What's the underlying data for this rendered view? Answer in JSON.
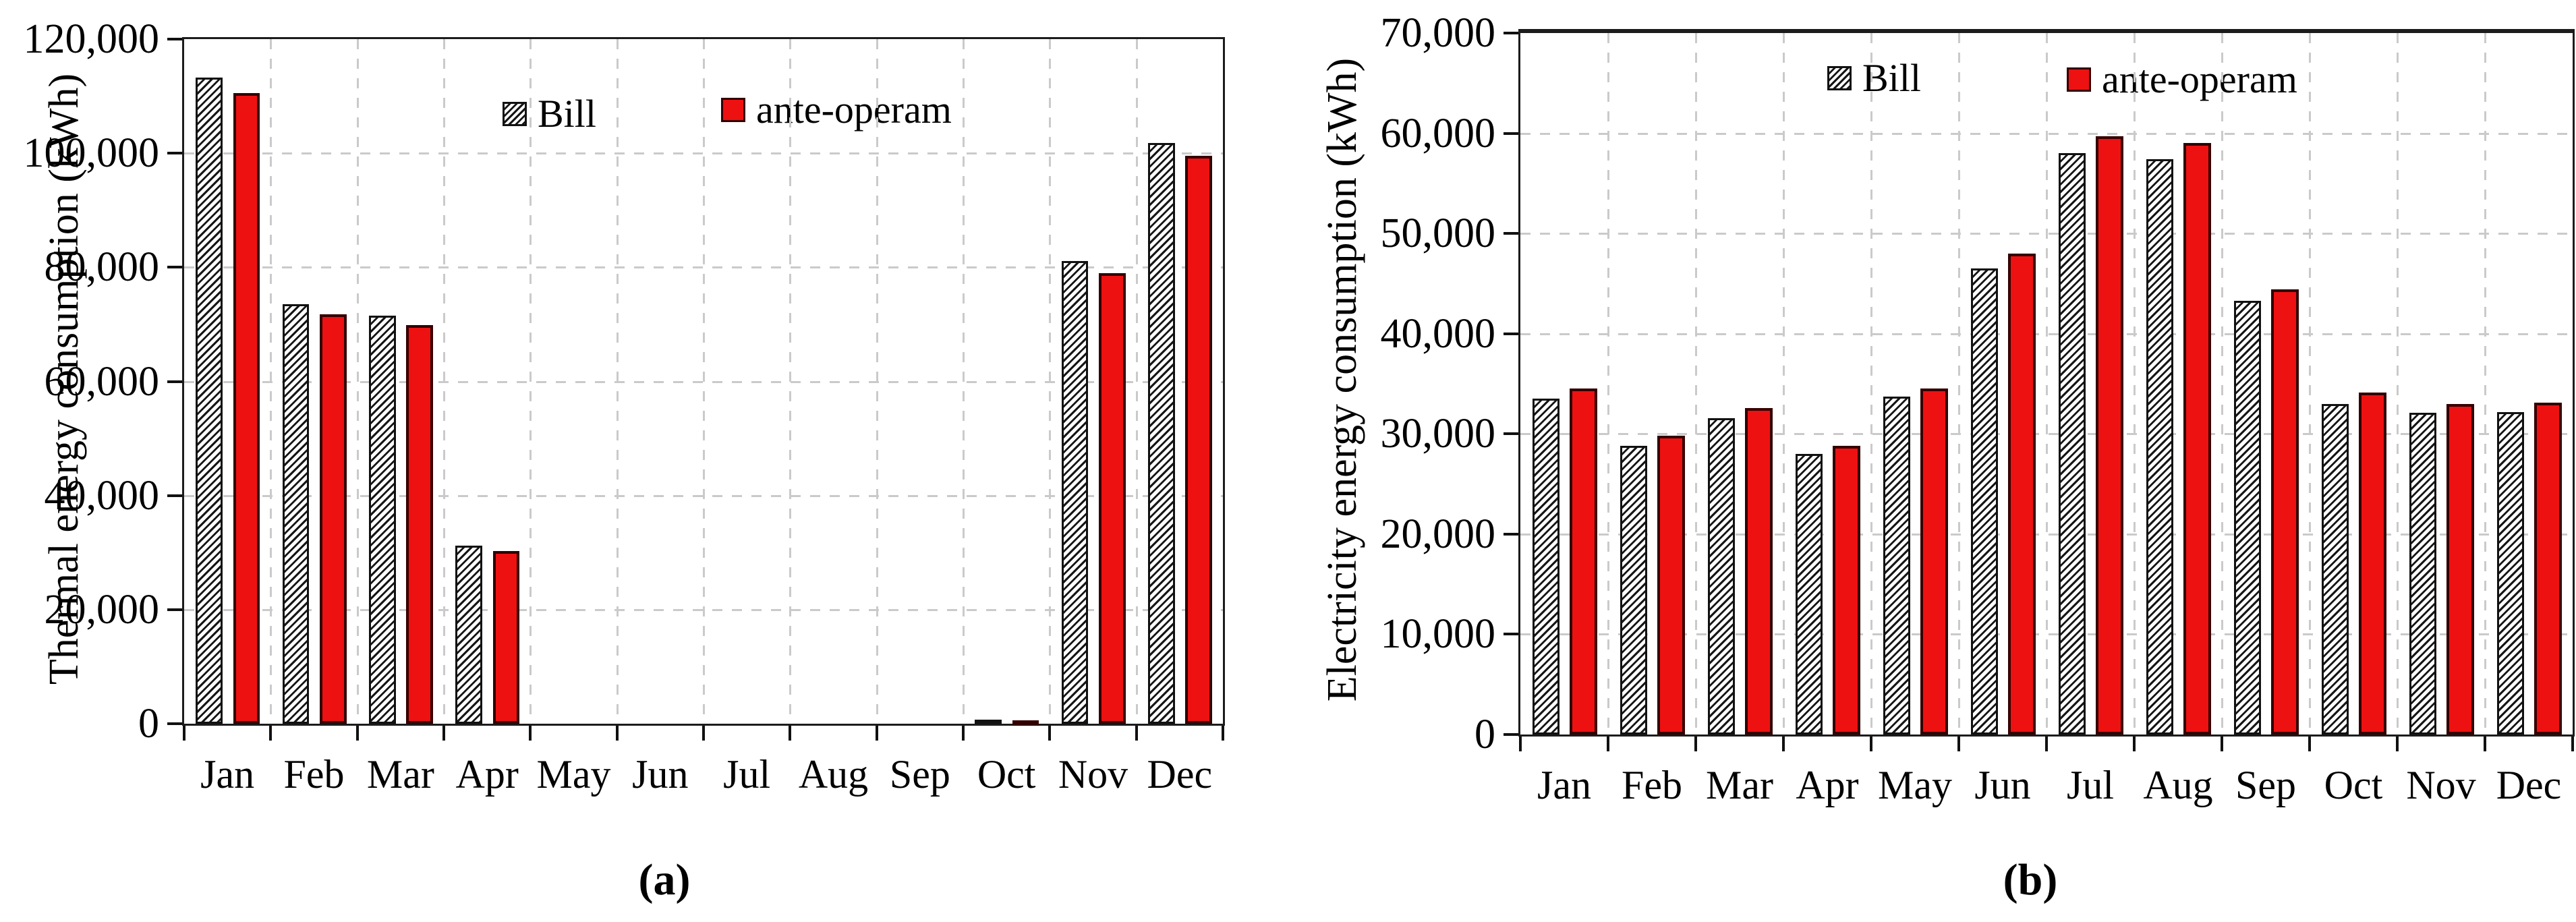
{
  "figure": {
    "background_color": "#ffffff",
    "gridline_color": "#cacaca",
    "bill_hatch_color": "#161616",
    "ante_operam_fill_color": "#ee1111",
    "bar_edge_color": "#111111"
  },
  "chart_data": [
    {
      "type": "bar",
      "panel": "a",
      "caption": "(a)",
      "title": "",
      "xlabel": "",
      "ylabel": "Thermal energy consumption (kWh)",
      "categories": [
        "Jan",
        "Feb",
        "Mar",
        "Apr",
        "May",
        "Jun",
        "Jul",
        "Aug",
        "Sep",
        "Oct",
        "Nov",
        "Dec"
      ],
      "series": [
        {
          "name": "Bill",
          "values": [
            113300,
            73500,
            71500,
            31200,
            0,
            0,
            0,
            0,
            0,
            700,
            81100,
            101800
          ]
        },
        {
          "name": "ante-operam",
          "values": [
            110600,
            71800,
            69900,
            30300,
            0,
            0,
            0,
            0,
            0,
            650,
            79000,
            99500
          ]
        }
      ],
      "ylim": [
        0,
        120000
      ],
      "ytick_step": 20000,
      "ytick_labels": [
        "0",
        "20,000",
        "40,000",
        "60,000",
        "80,000",
        "100,000",
        "120,000"
      ],
      "grid": true,
      "legend_position": "top-inside"
    },
    {
      "type": "bar",
      "panel": "b",
      "caption": "(b)",
      "title": "",
      "xlabel": "",
      "ylabel": "Electricity energy consumption (kWh)",
      "categories": [
        "Jan",
        "Feb",
        "Mar",
        "Apr",
        "May",
        "Jun",
        "Jul",
        "Aug",
        "Sep",
        "Oct",
        "Nov",
        "Dec"
      ],
      "series": [
        {
          "name": "Bill",
          "values": [
            33500,
            28800,
            31600,
            28000,
            33700,
            46500,
            58000,
            57400,
            43300,
            33000,
            32100,
            32200
          ]
        },
        {
          "name": "ante-operam",
          "values": [
            34500,
            29800,
            32600,
            28800,
            34500,
            48000,
            59700,
            59000,
            44400,
            34100,
            33000,
            33100
          ]
        }
      ],
      "ylim": [
        0,
        70000
      ],
      "ytick_step": 10000,
      "ytick_labels": [
        "0",
        "10,000",
        "20,000",
        "30,000",
        "40,000",
        "50,000",
        "60,000",
        "70,000"
      ],
      "grid": true,
      "legend_position": "top-inside"
    }
  ]
}
